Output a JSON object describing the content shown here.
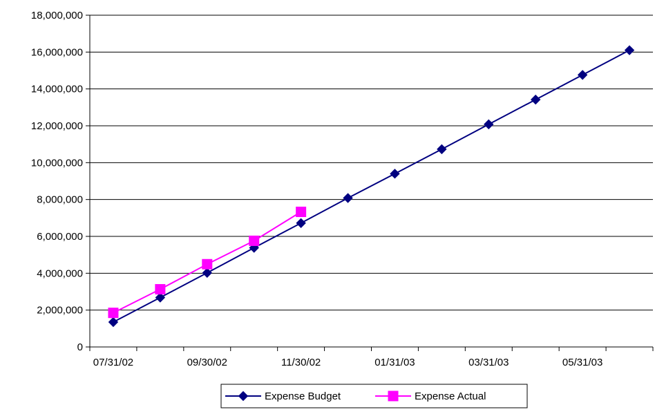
{
  "chart_data": {
    "type": "line",
    "title": "",
    "xlabel": "",
    "ylabel": "",
    "ylim": [
      0,
      18000000
    ],
    "yticks": [
      "0",
      "2,000,000",
      "4,000,000",
      "6,000,000",
      "8,000,000",
      "10,000,000",
      "12,000,000",
      "14,000,000",
      "16,000,000",
      "18,000,000"
    ],
    "ytick_values": [
      0,
      2000000,
      4000000,
      6000000,
      8000000,
      10000000,
      12000000,
      14000000,
      16000000,
      18000000
    ],
    "x": [
      "07/31/02",
      "08/31/02",
      "09/30/02",
      "10/31/02",
      "11/30/02",
      "12/31/02",
      "01/31/03",
      "02/28/03",
      "03/31/03",
      "04/30/03",
      "05/31/03",
      "06/30/03"
    ],
    "xtick_labels": [
      "07/31/02",
      "09/30/02",
      "11/30/02",
      "01/31/03",
      "03/31/03",
      "05/31/03"
    ],
    "grid": "horizontal",
    "legend": "bottom",
    "series": [
      {
        "name": "Expense Budget",
        "color": "#000080",
        "marker": "diamond",
        "values": [
          1350000,
          2680000,
          4020000,
          5380000,
          6720000,
          8080000,
          9400000,
          10730000,
          12080000,
          13420000,
          14760000,
          16100000
        ]
      },
      {
        "name": "Expense Actual",
        "color": "#ff00ff",
        "marker": "square",
        "values": [
          1850000,
          3130000,
          4490000,
          5760000,
          7330000,
          null,
          null,
          null,
          null,
          null,
          null,
          null
        ]
      }
    ]
  }
}
